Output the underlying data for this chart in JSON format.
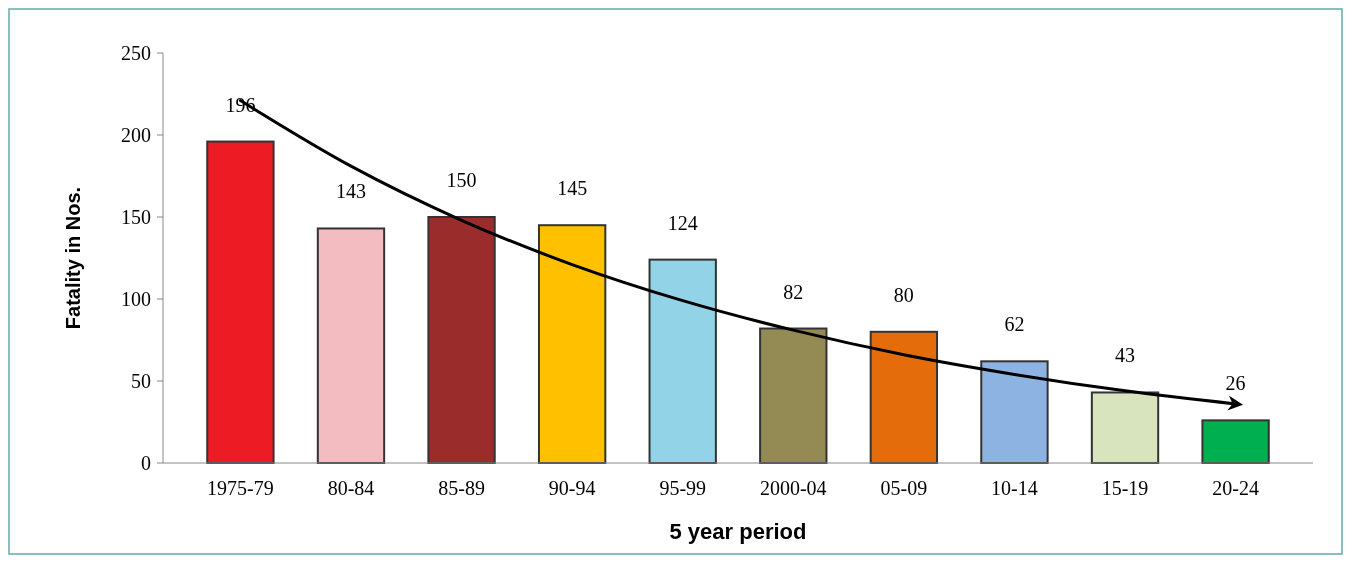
{
  "chart_data": {
    "type": "bar",
    "xlabel": "5 year period",
    "ylabel": "Fatality in Nos.",
    "categories": [
      "1975-79",
      "80-84",
      "85-89",
      "90-94",
      "95-99",
      "2000-04",
      "05-09",
      "10-14",
      "15-19",
      "20-24"
    ],
    "series": [
      {
        "colors": [
          "#ed1c24",
          "#f2bcc0",
          "#9b2c2c",
          "#ffc000",
          "#93d3e8",
          "#948a54",
          "#e46c0a",
          "#8db3e2",
          "#d7e4bd",
          "#00b050"
        ],
        "values": [
          196,
          143,
          150,
          145,
          124,
          82,
          80,
          62,
          43,
          26
        ],
        "value_labels": [
          "196",
          "143",
          "150",
          "145",
          "124",
          "82",
          "80",
          "62",
          "43",
          "26"
        ]
      },
      {
        "type": "line",
        "color": "#000000",
        "values": [
          221,
          181,
          148,
          121,
          99,
          81,
          66,
          54,
          44,
          36
        ]
      }
    ],
    "ylim": [
      0,
      250
    ],
    "yticks": [
      0,
      50,
      100,
      150,
      200,
      250
    ]
  }
}
